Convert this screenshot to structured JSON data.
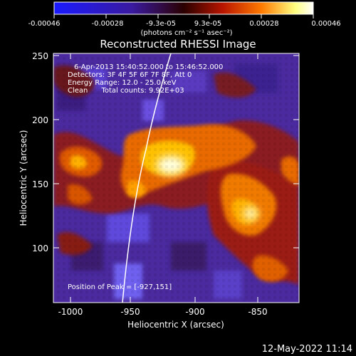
{
  "colorbar": {
    "tick_labels": [
      "-0.00046",
      "-0.00028",
      "-9.3e-05",
      "9.3e-05",
      "0.00028",
      "0.00046"
    ],
    "units": "(photons cm⁻² s⁻¹ asec⁻²)",
    "colors": [
      "#1a1aff",
      "#3a1aa0",
      "#2a0000",
      "#b81500",
      "#ff7a00",
      "#ffff80",
      "#ffffff"
    ]
  },
  "plot": {
    "title": "Reconstructed RHESSI Image",
    "xlabel": "Heliocentric X (arcsec)",
    "ylabel": "Heliocentric Y (arcsec)",
    "x_ticks": [
      "-1000",
      "-950",
      "-900",
      "-850"
    ],
    "y_ticks": [
      "250",
      "200",
      "150",
      "100"
    ],
    "info": [
      "6-Apr-2013 15:40:52.000 to 15:46:52.000",
      "Detectors: 3F 4F 5F 6F 7F 8F, Att 0",
      "Energy Range: 12.0 - 25.0 keV",
      "Clean      Total counts: 9.92E+03"
    ],
    "peak_label": "Position of Peak = [-927,151]"
  },
  "footer": {
    "timestamp": "12-May-2022 11:14"
  }
}
